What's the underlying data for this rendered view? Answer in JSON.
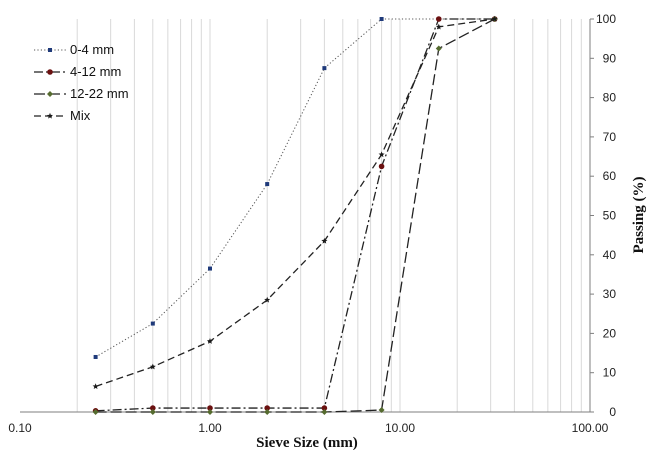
{
  "chart_data": {
    "type": "line",
    "xlabel": "Sieve Size (mm)",
    "ylabel": "Passing (%)",
    "x_scale": "log",
    "xlim": [
      0.1,
      100
    ],
    "ylim": [
      0,
      100
    ],
    "x_ticks": [
      "0.10",
      "1.00",
      "10.00",
      "100.00"
    ],
    "y_ticks": [
      "0",
      "10",
      "20",
      "30",
      "40",
      "50",
      "60",
      "70",
      "80",
      "90",
      "100"
    ],
    "y_axis_side": "right",
    "grid": "vertical minor log gridlines",
    "legend_position": "top-left",
    "series": [
      {
        "name": "0-4 mm",
        "color": "#1f3a7a",
        "marker": "square",
        "line_style": "dotted",
        "points": [
          [
            0.25,
            14
          ],
          [
            0.5,
            22.5
          ],
          [
            1,
            36.5
          ],
          [
            2,
            58
          ],
          [
            4,
            87.5
          ],
          [
            8,
            100
          ],
          [
            16,
            100
          ],
          [
            31.5,
            100
          ]
        ]
      },
      {
        "name": "4-12 mm",
        "color": "#6b1010",
        "marker": "circle",
        "line_style": "dashdot",
        "points": [
          [
            0.25,
            0.3
          ],
          [
            0.5,
            1
          ],
          [
            1,
            1
          ],
          [
            2,
            1
          ],
          [
            4,
            1
          ],
          [
            8,
            62.5
          ],
          [
            16,
            100
          ],
          [
            31.5,
            100
          ]
        ]
      },
      {
        "name": "12-22 mm",
        "color": "#556b2f",
        "marker": "diamond",
        "line_style": "longdash",
        "points": [
          [
            0.25,
            0
          ],
          [
            0.5,
            0
          ],
          [
            1,
            0
          ],
          [
            2,
            0
          ],
          [
            4,
            0
          ],
          [
            8,
            0.5
          ],
          [
            16,
            92.5
          ],
          [
            31.5,
            100
          ]
        ]
      },
      {
        "name": "Mix",
        "color": "#1a1a1a",
        "marker": "star",
        "line_style": "dashed",
        "points": [
          [
            0.25,
            6.5
          ],
          [
            0.5,
            11.5
          ],
          [
            1,
            18
          ],
          [
            2,
            28.5
          ],
          [
            4,
            43.5
          ],
          [
            8,
            65.5
          ],
          [
            16,
            98
          ],
          [
            31.5,
            100
          ]
        ]
      }
    ]
  }
}
